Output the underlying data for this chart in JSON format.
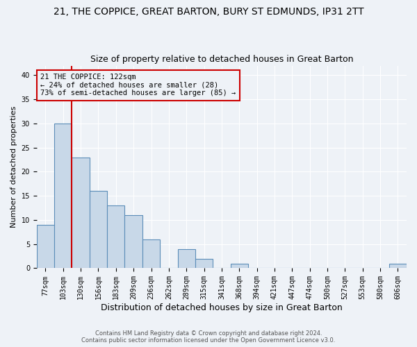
{
  "title1": "21, THE COPPICE, GREAT BARTON, BURY ST EDMUNDS, IP31 2TT",
  "title2": "Size of property relative to detached houses in Great Barton",
  "xlabel": "Distribution of detached houses by size in Great Barton",
  "ylabel": "Number of detached properties",
  "categories": [
    "77sqm",
    "103sqm",
    "130sqm",
    "156sqm",
    "183sqm",
    "209sqm",
    "236sqm",
    "262sqm",
    "289sqm",
    "315sqm",
    "341sqm",
    "368sqm",
    "394sqm",
    "421sqm",
    "447sqm",
    "474sqm",
    "500sqm",
    "527sqm",
    "553sqm",
    "580sqm",
    "606sqm"
  ],
  "values": [
    9,
    30,
    23,
    16,
    13,
    11,
    6,
    0,
    4,
    2,
    0,
    1,
    0,
    0,
    0,
    0,
    0,
    0,
    0,
    0,
    1
  ],
  "bar_color": "#c8d8e8",
  "bar_edge_color": "#5b8db8",
  "property_line_x": 1.5,
  "annotation_line1": "21 THE COPPICE: 122sqm",
  "annotation_line2": "← 24% of detached houses are smaller (28)",
  "annotation_line3": "73% of semi-detached houses are larger (85) →",
  "annotation_box_color": "#cc0000",
  "ylim": [
    0,
    42
  ],
  "yticks": [
    0,
    5,
    10,
    15,
    20,
    25,
    30,
    35,
    40
  ],
  "footnote1": "Contains HM Land Registry data © Crown copyright and database right 2024.",
  "footnote2": "Contains public sector information licensed under the Open Government Licence v3.0.",
  "bg_color": "#eef2f7",
  "grid_color": "#ffffff",
  "title_fontsize": 10,
  "subtitle_fontsize": 9,
  "tick_fontsize": 7,
  "ylabel_fontsize": 8,
  "xlabel_fontsize": 9,
  "annot_fontsize": 7.5,
  "footnote_fontsize": 6
}
